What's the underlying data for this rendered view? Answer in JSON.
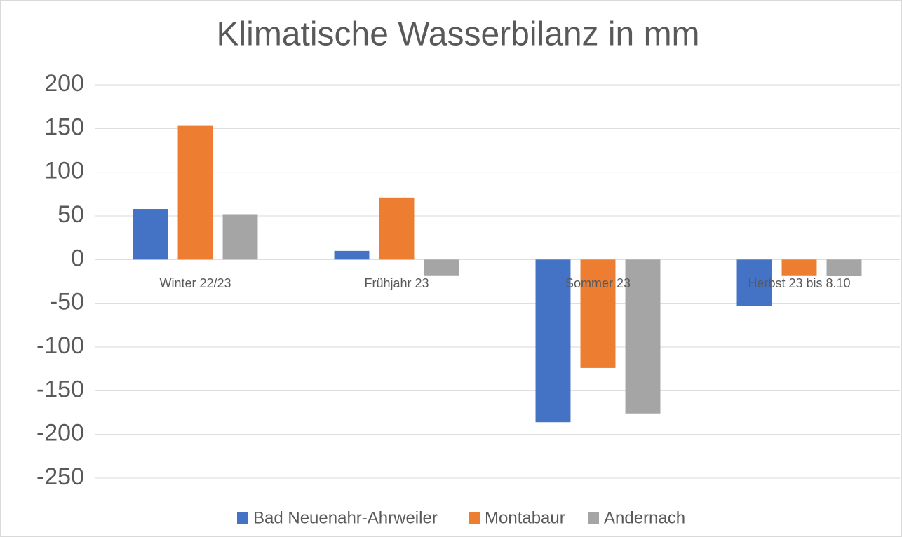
{
  "chart_data": {
    "type": "bar",
    "title": "Klimatische Wasserbilanz in mm",
    "categories": [
      "Winter 22/23",
      "Frühjahr 23",
      "Sommer 23",
      "Herbst 23 bis 8.10"
    ],
    "series": [
      {
        "name": "Bad Neuenahr-Ahrweiler",
        "color": "#4472c4",
        "values": [
          58,
          10,
          -186,
          -53
        ]
      },
      {
        "name": "Montabaur",
        "color": "#ed7d31",
        "values": [
          153,
          71,
          -124,
          -18
        ]
      },
      {
        "name": "Andernach",
        "color": "#a5a5a5",
        "values": [
          52,
          -18,
          -176,
          -19
        ]
      }
    ],
    "ylim": [
      -250,
      200
    ],
    "yticks": [
      -250,
      -200,
      -150,
      -100,
      -50,
      0,
      50,
      100,
      150,
      200
    ],
    "grid": true,
    "legend": "bottom"
  }
}
